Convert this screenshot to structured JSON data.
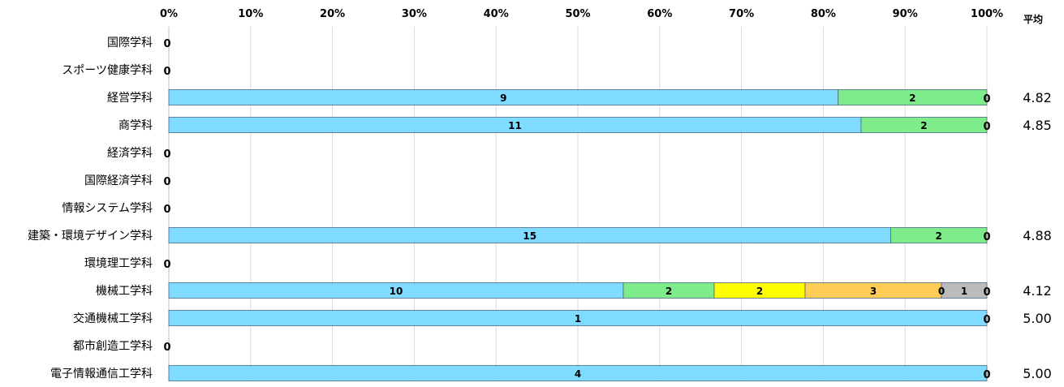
{
  "chart_data": {
    "type": "bar",
    "stacked": "percent",
    "orientation": "horizontal",
    "x_ticks": [
      "0%",
      "10%",
      "20%",
      "30%",
      "40%",
      "50%",
      "60%",
      "70%",
      "80%",
      "90%",
      "100%"
    ],
    "avg_header": "平均",
    "grid": true,
    "categories": [
      "国際学科",
      "スポーツ健康学科",
      "経営学科",
      "商学科",
      "経済学科",
      "国際経済学科",
      "情報システム学科",
      "建築・環境デザイン学科",
      "環境理工学科",
      "機械工学科",
      "交通機械工学科",
      "都市創造工学科",
      "電子情報通信工学科"
    ],
    "series": [
      {
        "color": "#7fdbff",
        "values": [
          0,
          0,
          9,
          11,
          0,
          0,
          0,
          15,
          0,
          10,
          1,
          0,
          4
        ]
      },
      {
        "color": "#7fec8c",
        "values": [
          0,
          0,
          2,
          2,
          0,
          0,
          0,
          2,
          0,
          2,
          0,
          0,
          0
        ]
      },
      {
        "color": "#ffff00",
        "values": [
          0,
          0,
          0,
          0,
          0,
          0,
          0,
          0,
          0,
          2,
          0,
          0,
          0
        ]
      },
      {
        "color": "#ffcc55",
        "values": [
          0,
          0,
          0,
          0,
          0,
          0,
          0,
          0,
          0,
          3,
          0,
          0,
          0
        ]
      },
      {
        "color": "#fbb0b0",
        "values": [
          0,
          0,
          0,
          0,
          0,
          0,
          0,
          0,
          0,
          0,
          0,
          0,
          0
        ]
      },
      {
        "color": "#bcbcbc",
        "values": [
          0,
          0,
          0,
          0,
          0,
          0,
          0,
          0,
          0,
          1,
          0,
          0,
          0
        ]
      }
    ],
    "averages": [
      "",
      "",
      "4.82",
      "4.85",
      "",
      "",
      "",
      "4.88",
      "",
      "4.12",
      "5.00",
      "",
      "5.00"
    ],
    "zero_labels": [
      {
        "row": 0,
        "text": "0"
      },
      {
        "row": 1,
        "text": "0"
      },
      {
        "row": 2,
        "text": "0"
      },
      {
        "row": 3,
        "text": "0"
      },
      {
        "row": 4,
        "text": "0"
      },
      {
        "row": 5,
        "text": "0"
      },
      {
        "row": 6,
        "text": "0"
      },
      {
        "row": 7,
        "text": "0"
      },
      {
        "row": 8,
        "text": "0"
      },
      {
        "row": 9,
        "text": "0"
      },
      {
        "row": 10,
        "text": "0"
      },
      {
        "row": 11,
        "text": "0"
      },
      {
        "row": 12,
        "text": "0"
      }
    ]
  }
}
